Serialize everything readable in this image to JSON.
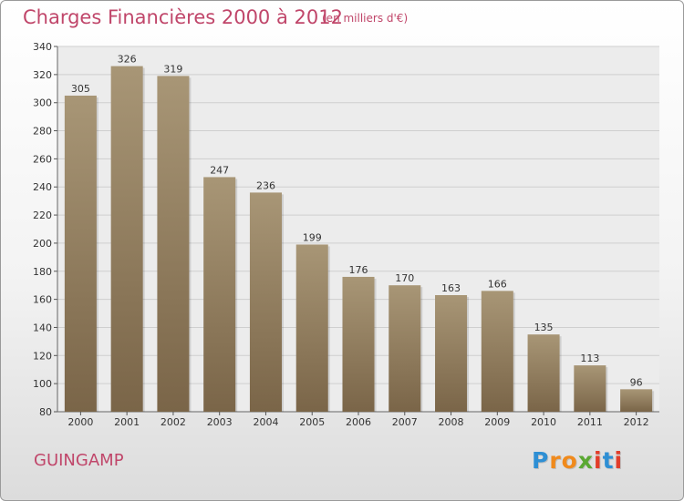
{
  "header": {
    "title": "Charges Financières 2000 à 2012",
    "subtitle": "(en milliers d'€)"
  },
  "footer": {
    "commune": "GUINGAMP",
    "logo_letters": [
      "P",
      "r",
      "o",
      "x",
      "i",
      "t",
      "i"
    ],
    "logo_colors": [
      "#2e8fd4",
      "#f08a1c",
      "#f08a1c",
      "#5aa832",
      "#e23d2a",
      "#2e8fd4",
      "#e23d2a"
    ]
  },
  "chart_data": {
    "type": "bar",
    "title": "Charges Financières 2000 à 2012",
    "subtitle": "(en milliers d'€)",
    "categories": [
      "2000",
      "2001",
      "2002",
      "2003",
      "2004",
      "2005",
      "2006",
      "2007",
      "2008",
      "2009",
      "2010",
      "2011",
      "2012"
    ],
    "values": [
      305,
      326,
      319,
      247,
      236,
      199,
      176,
      170,
      163,
      166,
      135,
      113,
      96
    ],
    "ylim": [
      80,
      340
    ],
    "yticks": [
      80,
      100,
      120,
      140,
      160,
      180,
      200,
      220,
      240,
      260,
      280,
      300,
      320,
      340
    ],
    "grid": true,
    "legend": "none",
    "colors": {
      "bar_top": "#a89676",
      "bar_bottom": "#7a6548",
      "text": "#333333",
      "grid": "#cfcfcf",
      "title": "#c0466a"
    }
  }
}
